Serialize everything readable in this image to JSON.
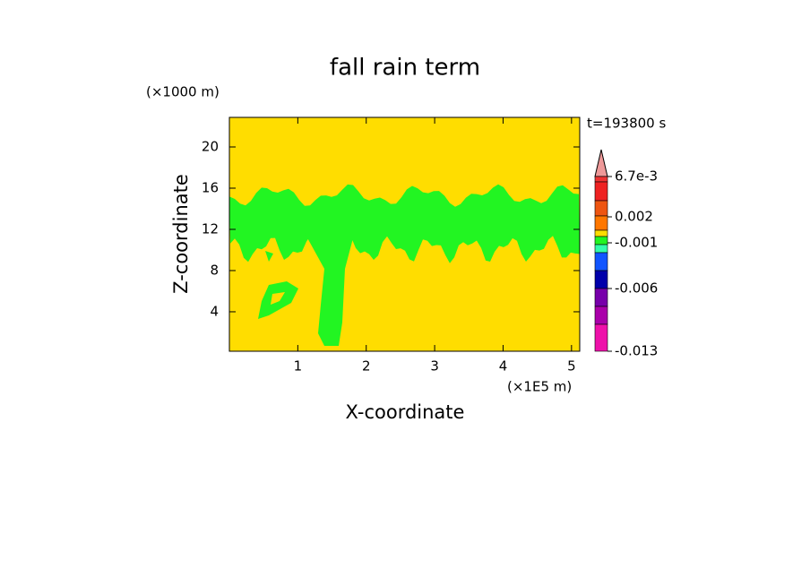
{
  "chart_data": {
    "type": "contour",
    "title": "fall rain term",
    "x_label": "X-coordinate",
    "y_label": "Z-coordinate",
    "x_unit": "(×1E5 m)",
    "y_unit": "(×1000 m)",
    "time_label": "t=193800 s",
    "xlim": [
      0,
      5.12
    ],
    "ylim": [
      0.17,
      22.87
    ],
    "xticks": [
      1,
      2,
      3,
      4,
      5
    ],
    "yticks": [
      4,
      8,
      12,
      16,
      20
    ],
    "background_color": "#ffdd00",
    "contour_color": "#22f522",
    "colorbar": {
      "colors": [
        "#ee9999",
        "#ee3333",
        "#ee2222",
        "#ee5511",
        "#ff7700",
        "#ffdd00",
        "#22f522",
        "#33ffaa",
        "#1155ff",
        "#0000aa",
        "#7700aa",
        "#aa00aa",
        "#ee11aa"
      ],
      "ticks": [
        {
          "value": 0.0067,
          "label": "6.7e-3"
        },
        0.002,
        -0.001,
        -0.006,
        -0.013
      ]
    }
  }
}
